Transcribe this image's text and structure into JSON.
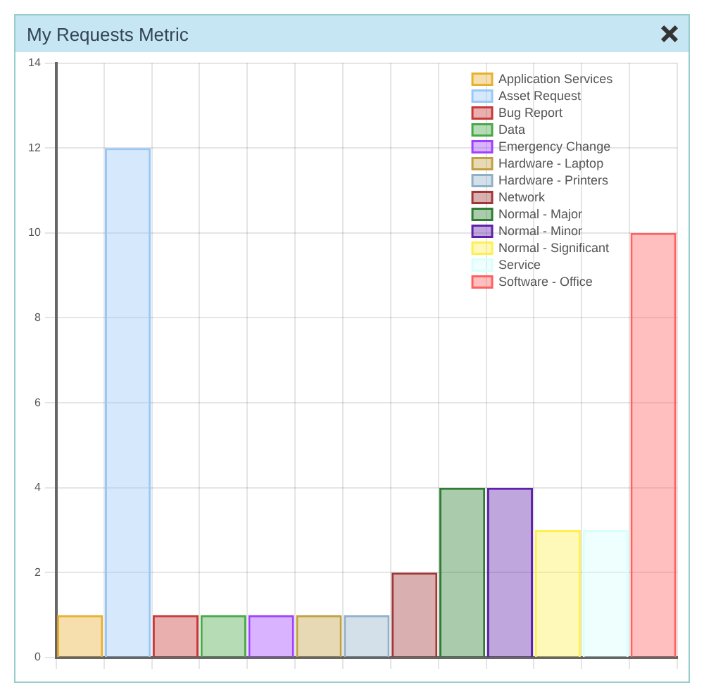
{
  "chart_data": {
    "type": "bar",
    "title": "My Requests Metric",
    "categories": [
      null,
      null,
      null,
      null,
      null,
      null,
      null,
      null,
      null,
      null,
      null,
      null,
      null
    ],
    "series": [
      {
        "name": "Application Services",
        "color": "#e8b030",
        "values": [
          1,
          null,
          null,
          null,
          null,
          null,
          null,
          null,
          null,
          null,
          null,
          null,
          null
        ]
      },
      {
        "name": "Asset Request",
        "color": "#98c8f8",
        "values": [
          null,
          12,
          null,
          null,
          null,
          null,
          null,
          null,
          null,
          null,
          null,
          null,
          null
        ]
      },
      {
        "name": "Bug Report",
        "color": "#c83838",
        "values": [
          null,
          null,
          1,
          null,
          null,
          null,
          null,
          null,
          null,
          null,
          null,
          null,
          null
        ]
      },
      {
        "name": "Data",
        "color": "#48a848",
        "values": [
          null,
          null,
          null,
          1,
          null,
          null,
          null,
          null,
          null,
          null,
          null,
          null,
          null
        ]
      },
      {
        "name": "Emergency Change",
        "color": "#a040ff",
        "values": [
          null,
          null,
          null,
          null,
          1,
          null,
          null,
          null,
          null,
          null,
          null,
          null,
          null
        ]
      },
      {
        "name": "Hardware - Laptop",
        "color": "#c0a040",
        "values": [
          null,
          null,
          null,
          null,
          null,
          1,
          null,
          null,
          null,
          null,
          null,
          null,
          null
        ]
      },
      {
        "name": "Hardware - Printers",
        "color": "#90b0c8",
        "values": [
          null,
          null,
          null,
          null,
          null,
          null,
          1,
          null,
          null,
          null,
          null,
          null,
          null
        ]
      },
      {
        "name": "Network",
        "color": "#a03838",
        "values": [
          null,
          null,
          null,
          null,
          null,
          null,
          null,
          2,
          null,
          null,
          null,
          null,
          null
        ]
      },
      {
        "name": "Normal - Major",
        "color": "#2e7d32",
        "values": [
          null,
          null,
          null,
          null,
          null,
          null,
          null,
          null,
          4,
          null,
          null,
          null,
          null
        ]
      },
      {
        "name": "Normal - Minor",
        "color": "#6020a8",
        "values": [
          null,
          null,
          null,
          null,
          null,
          null,
          null,
          null,
          null,
          4,
          null,
          null,
          null
        ]
      },
      {
        "name": "Normal - Significant",
        "color": "#fff050",
        "values": [
          null,
          null,
          null,
          null,
          null,
          null,
          null,
          null,
          null,
          null,
          3,
          null,
          null
        ]
      },
      {
        "name": "Service",
        "color": "#d8fffc",
        "values": [
          null,
          null,
          null,
          null,
          null,
          null,
          null,
          null,
          null,
          null,
          null,
          3,
          null
        ]
      },
      {
        "name": "Software - Office",
        "color": "#ff6060",
        "values": [
          null,
          null,
          null,
          null,
          null,
          null,
          null,
          null,
          null,
          null,
          null,
          null,
          10
        ]
      }
    ],
    "ylim": [
      0,
      14
    ],
    "yticks": [
      0,
      2,
      4,
      6,
      8,
      10,
      12,
      14
    ],
    "grid": true,
    "legend": "top right"
  }
}
